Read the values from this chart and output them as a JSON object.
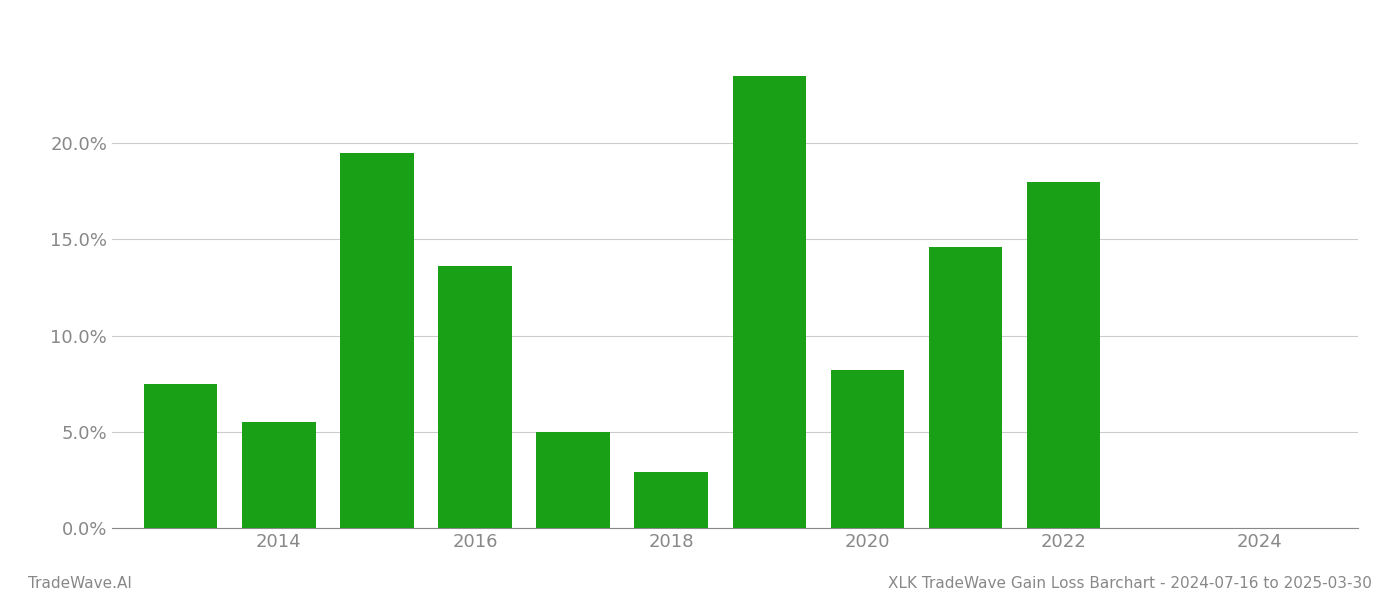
{
  "years": [
    2013,
    2014,
    2015,
    2016,
    2017,
    2018,
    2019,
    2020,
    2021,
    2022,
    2023
  ],
  "values": [
    0.075,
    0.055,
    0.195,
    0.136,
    0.05,
    0.029,
    0.235,
    0.082,
    0.146,
    0.18,
    0.0
  ],
  "bar_color": "#1aa016",
  "background_color": "#ffffff",
  "grid_color": "#cccccc",
  "axis_color": "#888888",
  "tick_label_color": "#888888",
  "footer_left": "TradeWave.AI",
  "footer_right": "XLK TradeWave Gain Loss Barchart - 2024-07-16 to 2025-03-30",
  "footer_color": "#888888",
  "footer_fontsize": 11,
  "ylim": [
    0,
    0.265
  ],
  "yticks": [
    0.0,
    0.05,
    0.1,
    0.15,
    0.2
  ],
  "xtick_positions": [
    2014,
    2016,
    2018,
    2020,
    2022,
    2024
  ],
  "bar_width": 0.75
}
